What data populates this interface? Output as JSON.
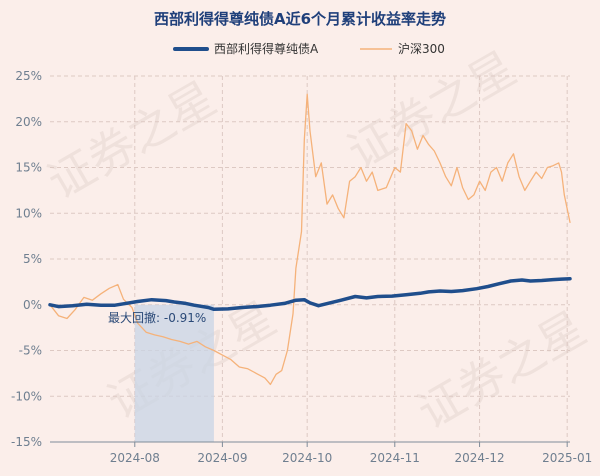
{
  "chart_data": {
    "type": "line",
    "title": "西部利得得尊纯债A近6个月累计收益率走势",
    "legend_position": "top-center",
    "ylim": [
      -15,
      25
    ],
    "yticks": [
      -15,
      -10,
      -5,
      0,
      5,
      10,
      15,
      20,
      25
    ],
    "ytick_labels": [
      "-15%",
      "-10%",
      "-5%",
      "0%",
      "5%",
      "10%",
      "15%",
      "20%",
      "25%"
    ],
    "xticks": [
      "2024-08-01",
      "2024-09-01",
      "2024-10-01",
      "2024-11-01",
      "2024-12-01",
      "2025-01-01"
    ],
    "xtick_labels": [
      "2024-08",
      "2024-09",
      "2024-10",
      "2024-11",
      "2024-12",
      "2025-01"
    ],
    "xlim": [
      "2024-07-02",
      "2025-01-02"
    ],
    "grid": true,
    "series": [
      {
        "name": "西部利得得尊纯债A",
        "color": "#1f4e8c",
        "points": [
          [
            "2024-07-02",
            0.0
          ],
          [
            "2024-07-05",
            -0.2
          ],
          [
            "2024-07-10",
            -0.1
          ],
          [
            "2024-07-15",
            0.05
          ],
          [
            "2024-07-20",
            -0.05
          ],
          [
            "2024-07-25",
            -0.05
          ],
          [
            "2024-07-28",
            0.1
          ],
          [
            "2024-08-02",
            0.35
          ],
          [
            "2024-08-07",
            0.55
          ],
          [
            "2024-08-12",
            0.45
          ],
          [
            "2024-08-15",
            0.3
          ],
          [
            "2024-08-19",
            0.15
          ],
          [
            "2024-08-22",
            -0.05
          ],
          [
            "2024-08-27",
            -0.3
          ],
          [
            "2024-08-29",
            -0.5
          ],
          [
            "2024-09-03",
            -0.45
          ],
          [
            "2024-09-08",
            -0.3
          ],
          [
            "2024-09-13",
            -0.2
          ],
          [
            "2024-09-18",
            -0.05
          ],
          [
            "2024-09-23",
            0.15
          ],
          [
            "2024-09-27",
            0.5
          ],
          [
            "2024-09-30",
            0.55
          ],
          [
            "2024-10-02",
            0.2
          ],
          [
            "2024-10-05",
            -0.1
          ],
          [
            "2024-10-09",
            0.2
          ],
          [
            "2024-10-13",
            0.5
          ],
          [
            "2024-10-18",
            0.9
          ],
          [
            "2024-10-22",
            0.75
          ],
          [
            "2024-10-26",
            0.9
          ],
          [
            "2024-10-31",
            0.95
          ],
          [
            "2024-11-05",
            1.1
          ],
          [
            "2024-11-10",
            1.25
          ],
          [
            "2024-11-13",
            1.4
          ],
          [
            "2024-11-17",
            1.5
          ],
          [
            "2024-11-21",
            1.45
          ],
          [
            "2024-11-25",
            1.55
          ],
          [
            "2024-11-30",
            1.75
          ],
          [
            "2024-12-04",
            2.0
          ],
          [
            "2024-12-08",
            2.3
          ],
          [
            "2024-12-12",
            2.6
          ],
          [
            "2024-12-16",
            2.7
          ],
          [
            "2024-12-19",
            2.6
          ],
          [
            "2024-12-23",
            2.65
          ],
          [
            "2024-12-27",
            2.75
          ],
          [
            "2024-12-30",
            2.8
          ],
          [
            "2025-01-02",
            2.85
          ]
        ]
      },
      {
        "name": "沪深300",
        "color": "#f5b27a",
        "points": [
          [
            "2024-07-02",
            0.0
          ],
          [
            "2024-07-05",
            -1.2
          ],
          [
            "2024-07-08",
            -1.5
          ],
          [
            "2024-07-11",
            -0.5
          ],
          [
            "2024-07-14",
            0.8
          ],
          [
            "2024-07-17",
            0.5
          ],
          [
            "2024-07-20",
            1.2
          ],
          [
            "2024-07-23",
            1.8
          ],
          [
            "2024-07-26",
            2.2
          ],
          [
            "2024-07-28",
            0.6
          ],
          [
            "2024-07-31",
            -0.3
          ],
          [
            "2024-08-02",
            -2.0
          ],
          [
            "2024-08-05",
            -3.0
          ],
          [
            "2024-08-08",
            -3.3
          ],
          [
            "2024-08-11",
            -3.5
          ],
          [
            "2024-08-14",
            -3.8
          ],
          [
            "2024-08-17",
            -4.0
          ],
          [
            "2024-08-20",
            -4.3
          ],
          [
            "2024-08-23",
            -4.0
          ],
          [
            "2024-08-26",
            -4.6
          ],
          [
            "2024-08-29",
            -5.0
          ],
          [
            "2024-09-01",
            -5.5
          ],
          [
            "2024-09-04",
            -6.0
          ],
          [
            "2024-09-07",
            -6.8
          ],
          [
            "2024-09-10",
            -7.0
          ],
          [
            "2024-09-13",
            -7.5
          ],
          [
            "2024-09-16",
            -8.0
          ],
          [
            "2024-09-18",
            -8.7
          ],
          [
            "2024-09-20",
            -7.6
          ],
          [
            "2024-09-22",
            -7.2
          ],
          [
            "2024-09-24",
            -5.0
          ],
          [
            "2024-09-26",
            -1.0
          ],
          [
            "2024-09-27",
            4.0
          ],
          [
            "2024-09-29",
            8.0
          ],
          [
            "2024-09-30",
            18.0
          ],
          [
            "2024-10-01",
            23.0
          ],
          [
            "2024-10-02",
            19.0
          ],
          [
            "2024-10-04",
            14.0
          ],
          [
            "2024-10-06",
            15.5
          ],
          [
            "2024-10-08",
            11.0
          ],
          [
            "2024-10-10",
            12.0
          ],
          [
            "2024-10-12",
            10.5
          ],
          [
            "2024-10-14",
            9.5
          ],
          [
            "2024-10-16",
            13.5
          ],
          [
            "2024-10-18",
            14.0
          ],
          [
            "2024-10-20",
            15.0
          ],
          [
            "2024-10-22",
            13.5
          ],
          [
            "2024-10-24",
            14.5
          ],
          [
            "2024-10-26",
            12.5
          ],
          [
            "2024-10-29",
            12.8
          ],
          [
            "2024-11-01",
            15.0
          ],
          [
            "2024-11-03",
            14.5
          ],
          [
            "2024-11-05",
            19.8
          ],
          [
            "2024-11-07",
            19.0
          ],
          [
            "2024-11-09",
            17.0
          ],
          [
            "2024-11-11",
            18.5
          ],
          [
            "2024-11-13",
            17.5
          ],
          [
            "2024-11-15",
            16.8
          ],
          [
            "2024-11-17",
            15.5
          ],
          [
            "2024-11-19",
            14.0
          ],
          [
            "2024-11-21",
            13.0
          ],
          [
            "2024-11-23",
            15.0
          ],
          [
            "2024-11-25",
            12.8
          ],
          [
            "2024-11-27",
            11.5
          ],
          [
            "2024-11-29",
            12.0
          ],
          [
            "2024-12-01",
            13.5
          ],
          [
            "2024-12-03",
            12.5
          ],
          [
            "2024-12-05",
            14.5
          ],
          [
            "2024-12-07",
            15.0
          ],
          [
            "2024-12-09",
            13.5
          ],
          [
            "2024-12-11",
            15.5
          ],
          [
            "2024-12-13",
            16.5
          ],
          [
            "2024-12-15",
            14.0
          ],
          [
            "2024-12-17",
            12.5
          ],
          [
            "2024-12-19",
            13.5
          ],
          [
            "2024-12-21",
            14.5
          ],
          [
            "2024-12-23",
            13.8
          ],
          [
            "2024-12-25",
            15.0
          ],
          [
            "2024-12-27",
            15.2
          ],
          [
            "2024-12-29",
            15.5
          ],
          [
            "2024-12-30",
            14.5
          ],
          [
            "2024-12-31",
            12.0
          ],
          [
            "2025-01-02",
            9.0
          ]
        ]
      }
    ],
    "annotations": [
      {
        "text": "最大回撤: -0.91%",
        "x_start": "2024-08-01",
        "x_end": "2024-08-29",
        "color": "#c8d4e6"
      }
    ],
    "watermark": "证券之星"
  }
}
